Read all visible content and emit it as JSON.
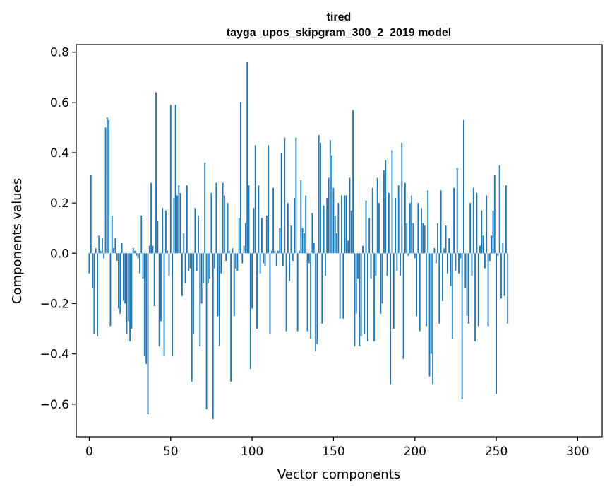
{
  "chart_data": {
    "type": "bar",
    "title_line1": "tired",
    "title_line2": "tayga_upos_skipgram_300_2_2019 model",
    "xlabel": "Vector components",
    "ylabel": "Components values",
    "xlim": [
      -8,
      315
    ],
    "ylim": [
      -0.73,
      0.83
    ],
    "xticks": [
      0,
      50,
      100,
      150,
      200,
      250,
      300
    ],
    "xtick_labels": [
      "0",
      "50",
      "100",
      "150",
      "200",
      "250",
      "300"
    ],
    "yticks": [
      -0.6,
      -0.4,
      -0.2,
      0.0,
      0.2,
      0.4,
      0.6,
      0.8
    ],
    "ytick_labels": [
      "−0.6",
      "−0.4",
      "−0.2",
      "0.0",
      "0.2",
      "0.4",
      "0.6",
      "0.8"
    ],
    "bar_color": "#1f77b4",
    "values": [
      -0.08,
      0.31,
      -0.14,
      -0.32,
      0.02,
      -0.33,
      0.07,
      0.01,
      0.06,
      -0.02,
      0.5,
      0.54,
      0.53,
      -0.29,
      0.15,
      0.02,
      0.06,
      -0.03,
      -0.22,
      -0.24,
      0.04,
      -0.19,
      -0.2,
      -0.32,
      -0.27,
      -0.35,
      -0.3,
      0.02,
      0.01,
      -0.01,
      -0.02,
      -0.08,
      0.15,
      -0.1,
      -0.41,
      -0.44,
      -0.64,
      0.03,
      0.28,
      0.03,
      -0.21,
      0.64,
      0.13,
      -0.37,
      -0.27,
      0.18,
      -0.41,
      0.17,
      0.01,
      -0.09,
      0.59,
      -0.41,
      0.22,
      0.59,
      0.23,
      0.27,
      0.24,
      -0.17,
      0.08,
      -0.12,
      0.27,
      -0.07,
      -0.06,
      -0.51,
      -0.32,
      0.18,
      -0.07,
      0.15,
      -0.37,
      -0.2,
      -0.12,
      0.36,
      -0.62,
      -0.12,
      -0.1,
      0.24,
      -0.66,
      -0.06,
      0.28,
      -0.25,
      -0.37,
      -0.08,
      0.28,
      0.23,
      -0.03,
      0.2,
      0.01,
      -0.51,
      0.02,
      -0.25,
      -0.06,
      -0.07,
      0.14,
      0.6,
      -0.04,
      0.03,
      0.12,
      0.76,
      0.27,
      -0.46,
      -0.22,
      0.18,
      0.43,
      -0.3,
      0.27,
      -0.08,
      0.14,
      -0.04,
      -0.05,
      0.15,
      0.43,
      -0.32,
      0.01,
      0.26,
      0.01,
      -0.05,
      0.01,
      0.1,
      0.4,
      -0.05,
      0.46,
      -0.31,
      0.2,
      -0.11,
      0.11,
      -0.03,
      0.22,
      0.46,
      -0.31,
      0.01,
      0.29,
      0.1,
      0.08,
      0.23,
      -0.31,
      -0.04,
      -0.34,
      0.16,
      0.04,
      -0.39,
      -0.36,
      0.47,
      0.44,
      -0.28,
      0.19,
      -0.09,
      0.22,
      0.3,
      0.45,
      0.39,
      0.26,
      0.15,
      0.08,
      0.2,
      -0.26,
      0.23,
      -0.26,
      0.23,
      0.23,
      0.05,
      0.3,
      0.17,
      0.57,
      -0.37,
      -0.24,
      -0.1,
      -0.37,
      -0.33,
      0.03,
      -0.32,
      0.21,
      -0.35,
      0.14,
      -0.1,
      0.26,
      -0.35,
      -0.09,
      0.3,
      0.2,
      -0.24,
      -0.2,
      0.33,
      0.37,
      -0.09,
      0.24,
      -0.52,
      0.41,
      -0.3,
      0.22,
      -0.07,
      0.27,
      -0.09,
      0.44,
      -0.42,
      0.28,
      0.12,
      -0.01,
      0.2,
      0.23,
      0.12,
      -0.02,
      -0.25,
      0.2,
      -0.31,
      0.18,
      0.12,
      0.11,
      -0.29,
      0.25,
      -0.49,
      -0.4,
      -0.52,
      0.02,
      -0.04,
      0.12,
      -0.28,
      0.25,
      -0.19,
      0.02,
      0.11,
      -0.08,
      0.06,
      -0.13,
      -0.34,
      0.26,
      -0.07,
      0.34,
      -0.08,
      -0.02,
      -0.58,
      0.53,
      -0.14,
      -0.25,
      -0.28,
      0.2,
      -0.09,
      0.26,
      -0.35,
      0.24,
      -0.29,
      0.03,
      0.17,
      0.07,
      -0.06,
      0.23,
      -0.29,
      -0.03,
      0.07,
      0.17,
      0.31,
      -0.56,
      -0.01,
      0.35,
      -0.18,
      0.04,
      -0.17,
      0.27,
      -0.28
    ]
  }
}
